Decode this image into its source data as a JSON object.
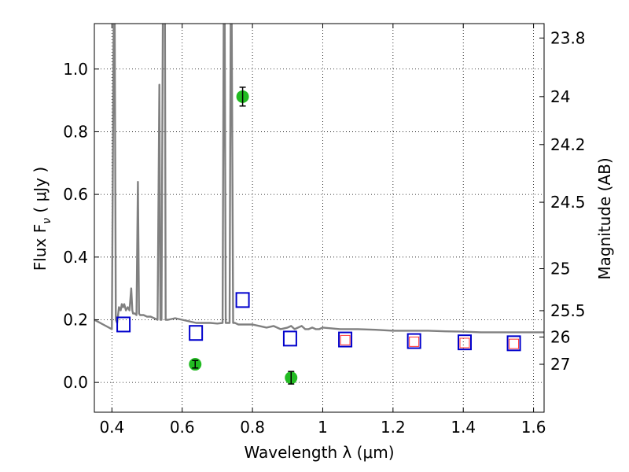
{
  "chart_data": {
    "type": "scatter",
    "xlabel": "Wavelength  λ (μm)",
    "ylabel": "Flux  F",
    "ylabel_sub": "ν",
    "ylabel_unit": "  ( μJy )",
    "y2label": "Magnitude (AB)",
    "xlim": [
      0.35,
      1.63
    ],
    "ylim": [
      -0.095,
      1.145
    ],
    "grid": true,
    "x_ticks": [
      0.4,
      0.6,
      0.8,
      1.0,
      1.2,
      1.4,
      1.6
    ],
    "x_tick_labels": [
      "0.4",
      "0.6",
      "0.8",
      "1",
      "1.2",
      "1.4",
      "1.6"
    ],
    "y_ticks": [
      0.0,
      0.2,
      0.4,
      0.6,
      0.8,
      1.0
    ],
    "y_tick_labels": [
      "0.0",
      "0.2",
      "0.4",
      "0.6",
      "0.8",
      "1.0"
    ],
    "y2_ticks": [
      {
        "label": "23.8",
        "flux": 1.099
      },
      {
        "label": "24",
        "flux": 0.912
      },
      {
        "label": "24.2",
        "flux": 0.759
      },
      {
        "label": "24.5",
        "flux": 0.575
      },
      {
        "label": "25",
        "flux": 0.363
      },
      {
        "label": "25.5",
        "flux": 0.229
      },
      {
        "label": "26",
        "flux": 0.145
      },
      {
        "label": "27",
        "flux": 0.058
      }
    ],
    "series": [
      {
        "marker": "line",
        "color": "#808080",
        "x": [
          0.35,
          0.375,
          0.4,
          0.405,
          0.408,
          0.411,
          0.415,
          0.42,
          0.425,
          0.428,
          0.432,
          0.435,
          0.44,
          0.445,
          0.45,
          0.455,
          0.458,
          0.46,
          0.465,
          0.47,
          0.474,
          0.477,
          0.48,
          0.49,
          0.5,
          0.51,
          0.52,
          0.53,
          0.535,
          0.538,
          0.541,
          0.545,
          0.547,
          0.549,
          0.551,
          0.553,
          0.556,
          0.56,
          0.58,
          0.6,
          0.62,
          0.64,
          0.66,
          0.68,
          0.7,
          0.715,
          0.718,
          0.721,
          0.724,
          0.727,
          0.735,
          0.738,
          0.741,
          0.745,
          0.75,
          0.76,
          0.78,
          0.8,
          0.82,
          0.84,
          0.86,
          0.88,
          0.9,
          0.91,
          0.92,
          0.93,
          0.94,
          0.95,
          0.96,
          0.97,
          0.98,
          0.99,
          1.0,
          1.05,
          1.1,
          1.15,
          1.2,
          1.25,
          1.3,
          1.35,
          1.4,
          1.45,
          1.5,
          1.55,
          1.6,
          1.63
        ],
        "y": [
          0.2,
          0.185,
          0.17,
          1.15,
          1.15,
          0.2,
          0.19,
          0.24,
          0.23,
          0.25,
          0.24,
          0.25,
          0.23,
          0.24,
          0.23,
          0.3,
          0.23,
          0.22,
          0.22,
          0.215,
          0.64,
          0.22,
          0.215,
          0.215,
          0.21,
          0.21,
          0.205,
          0.2,
          0.95,
          0.2,
          0.2,
          1.15,
          1.15,
          1.15,
          1.15,
          0.2,
          0.2,
          0.2,
          0.205,
          0.2,
          0.195,
          0.19,
          0.19,
          0.19,
          0.188,
          0.19,
          1.15,
          1.15,
          0.19,
          0.19,
          0.19,
          1.15,
          1.15,
          0.19,
          0.19,
          0.185,
          0.185,
          0.185,
          0.18,
          0.175,
          0.18,
          0.17,
          0.175,
          0.18,
          0.17,
          0.175,
          0.18,
          0.17,
          0.17,
          0.175,
          0.17,
          0.17,
          0.175,
          0.17,
          0.17,
          0.168,
          0.165,
          0.165,
          0.165,
          0.163,
          0.162,
          0.16,
          0.16,
          0.16,
          0.16,
          0.16
        ]
      },
      {
        "marker": "open-square",
        "color": "#0000cc",
        "x": [
          0.433,
          0.639,
          0.772,
          0.907,
          1.064,
          1.26,
          1.404,
          1.544
        ],
        "y": [
          0.185,
          0.158,
          0.263,
          0.14,
          0.137,
          0.132,
          0.128,
          0.125
        ]
      },
      {
        "marker": "open-square-small",
        "color": "#ff3333",
        "x": [
          1.064,
          1.26,
          1.404,
          1.544
        ],
        "y": [
          0.135,
          0.13,
          0.126,
          0.123
        ]
      },
      {
        "marker": "filled-circle-errorbar",
        "color": "#22bb22",
        "x": [
          0.637,
          0.772,
          0.91
        ],
        "y": [
          0.058,
          0.912,
          0.015
        ],
        "yerr": [
          0.012,
          0.03,
          0.02
        ]
      }
    ]
  },
  "colors": {
    "sed_line": "#808080",
    "model_square": "#0000cc",
    "model_square_inner": "#ff3333",
    "observed_point": "#22bb22"
  }
}
